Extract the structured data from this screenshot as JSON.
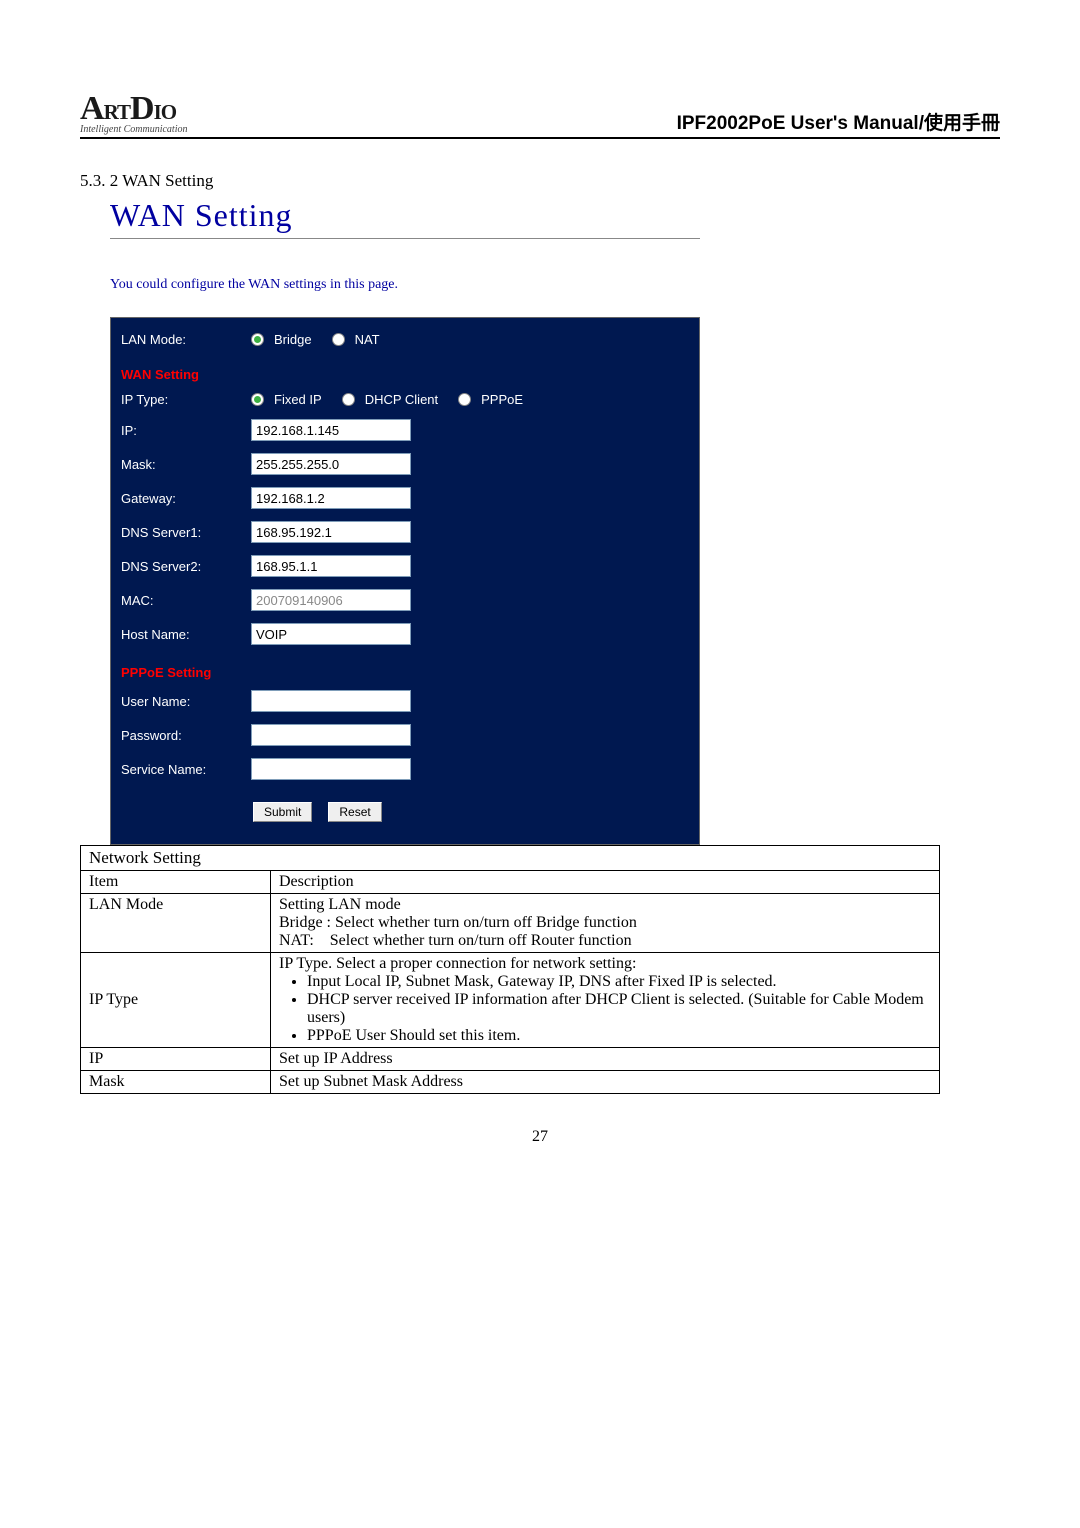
{
  "header": {
    "logo_main": "ArtDio",
    "logo_sub": "Intelligent Communication",
    "manual_title": "IPF2002PoE User's Manual/使用手冊"
  },
  "section": {
    "number": "5.3. 2 WAN Setting",
    "wan_title": "WAN Setting",
    "wan_desc": "You could configure the WAN settings in this page."
  },
  "panel": {
    "background_color": "#001850",
    "text_color": "#ffffff",
    "section_color": "#ff0000",
    "lan_mode_label": "LAN Mode:",
    "lan_mode_options": {
      "bridge": "Bridge",
      "nat": "NAT"
    },
    "wan_setting_label": "WAN Setting",
    "ip_type_label": "IP Type:",
    "ip_type_options": {
      "fixed": "Fixed IP",
      "dhcp": "DHCP Client",
      "pppoe": "PPPoE"
    },
    "ip_label": "IP:",
    "ip_value": "192.168.1.145",
    "mask_label": "Mask:",
    "mask_value": "255.255.255.0",
    "gateway_label": "Gateway:",
    "gateway_value": "192.168.1.2",
    "dns1_label": "DNS Server1:",
    "dns1_value": "168.95.192.1",
    "dns2_label": "DNS Server2:",
    "dns2_value": "168.95.1.1",
    "mac_label": "MAC:",
    "mac_value": "200709140906",
    "host_label": "Host Name:",
    "host_value": "VOIP",
    "pppoe_setting_label": "PPPoE Setting",
    "user_label": "User Name:",
    "user_value": "",
    "pass_label": "Password:",
    "pass_value": "",
    "service_label": "Service Name:",
    "service_value": "",
    "submit_label": "Submit",
    "reset_label": "Reset"
  },
  "table": {
    "caption": "Network Setting",
    "header_item": "Item",
    "header_desc": "Description",
    "lan_mode_item": "LAN Mode",
    "lan_mode_line1": "Setting LAN mode",
    "lan_mode_line2": "Bridge : Select whether turn on/turn off Bridge function",
    "lan_mode_line3": "NAT:    Select whether turn on/turn off Router function",
    "ip_type_item": "IP Type",
    "ip_type_line1": "IP Type. Select a proper connection for network setting:",
    "ip_type_b1": "Input Local IP, Subnet Mask, Gateway IP, DNS after Fixed IP is selected.",
    "ip_type_b2": "DHCP server received IP information after DHCP Client is selected. (Suitable for Cable Modem users)",
    "ip_type_b3": "PPPoE User Should set this item.",
    "ip_item": "IP",
    "ip_desc": "Set up IP Address",
    "mask_item": "Mask",
    "mask_desc": "Set up Subnet Mask Address"
  },
  "page_number": "27"
}
